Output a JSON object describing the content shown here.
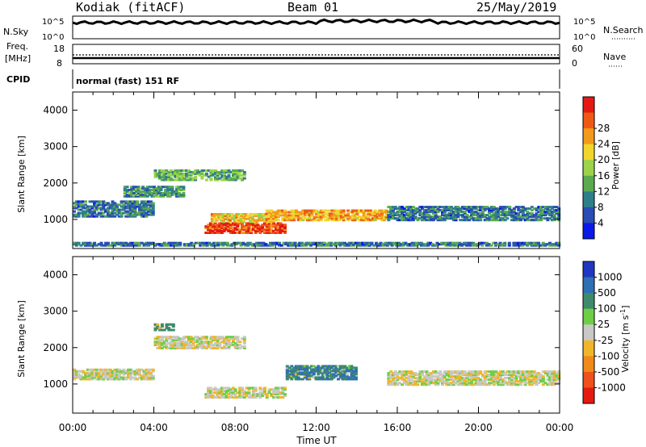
{
  "header": {
    "station": "Kodiak (fitACF)",
    "beam": "Beam 01",
    "date": "25/May/2019"
  },
  "nsky_panel": {
    "left_label": "N.Sky",
    "left_ticks": [
      "10^5",
      "10^0"
    ],
    "right_label": "N.Search",
    "right_ticks": [
      "10^5",
      "10^0"
    ]
  },
  "freq_panel": {
    "left_label_1": "Freq.",
    "left_label_2": "[MHz]",
    "left_ticks": [
      "18",
      "8"
    ],
    "right_label": "Nave",
    "right_ticks": [
      "60",
      "0"
    ]
  },
  "cpid": {
    "label": "CPID",
    "text": "normal (fast) 151 RF"
  },
  "colors": {
    "frame": "#000000",
    "sky_trace": "#000000"
  },
  "chart_data": [
    {
      "type": "heatmap",
      "title": "",
      "xlabel": "",
      "ylabel": "Slant Range [km]",
      "xlim": [
        "00:00",
        "24:00"
      ],
      "ylim": [
        200,
        4500
      ],
      "yticks": [
        1000,
        2000,
        3000,
        4000
      ],
      "colorbar": {
        "label": "Power [dB]",
        "ticks": [
          4,
          8,
          12,
          16,
          20,
          24,
          28
        ],
        "colors": [
          "#0a18e8",
          "#2a4cb4",
          "#2f7f8a",
          "#5aab4f",
          "#9bd34a",
          "#f0d62c",
          "#f29a1c",
          "#ee5a16",
          "#e41a12"
        ]
      },
      "features": [
        {
          "start_h": 0.0,
          "end_h": 4.0,
          "range_km": [
            1050,
            1500
          ],
          "level_db": 8
        },
        {
          "start_h": 2.5,
          "end_h": 5.5,
          "range_km": [
            1600,
            1900
          ],
          "level_db": 10
        },
        {
          "start_h": 4.0,
          "end_h": 8.5,
          "range_km": [
            2050,
            2350
          ],
          "level_db": 12
        },
        {
          "start_h": 6.5,
          "end_h": 10.5,
          "range_km": [
            600,
            900
          ],
          "level_db": 28
        },
        {
          "start_h": 6.8,
          "end_h": 10.0,
          "range_km": [
            900,
            1150
          ],
          "level_db": 20
        },
        {
          "start_h": 9.5,
          "end_h": 15.5,
          "range_km": [
            950,
            1250
          ],
          "level_db": 22
        },
        {
          "start_h": 15.5,
          "end_h": 24.0,
          "range_km": [
            950,
            1350
          ],
          "level_db": 8
        },
        {
          "start_h": 0.0,
          "end_h": 24.0,
          "range_km": [
            250,
            350
          ],
          "level_db": 8
        }
      ]
    },
    {
      "type": "heatmap",
      "title": "",
      "xlabel": "Time UT",
      "ylabel": "Slant Range [km]",
      "xlim": [
        "00:00",
        "24:00"
      ],
      "ylim": [
        200,
        4500
      ],
      "yticks": [
        1000,
        2000,
        3000,
        4000
      ],
      "xticks": [
        "00:00",
        "04:00",
        "08:00",
        "12:00",
        "16:00",
        "20:00",
        "00:00"
      ],
      "colorbar": {
        "label": "Velocity [m s^-1]",
        "ticks": [
          "1000",
          "500",
          "100",
          "25",
          "-25",
          "-100",
          "-500",
          "-1000"
        ],
        "colors": [
          "#2038c0",
          "#2f6fb4",
          "#3f8a6a",
          "#6fce46",
          "#c8c8c4",
          "#f0b62a",
          "#f08a1a",
          "#f0501a",
          "#e41a12"
        ]
      },
      "features": [
        {
          "start_h": 0.0,
          "end_h": 4.0,
          "range_km": [
            1100,
            1400
          ],
          "velocity": 0
        },
        {
          "start_h": 4.0,
          "end_h": 8.5,
          "range_km": [
            1950,
            2300
          ],
          "velocity": 0
        },
        {
          "start_h": 4.0,
          "end_h": 5.0,
          "range_km": [
            2450,
            2650
          ],
          "velocity": 200
        },
        {
          "start_h": 6.5,
          "end_h": 10.5,
          "range_km": [
            600,
            900
          ],
          "velocity": 0
        },
        {
          "start_h": 10.5,
          "end_h": 14.0,
          "range_km": [
            1100,
            1500
          ],
          "velocity": 300
        },
        {
          "start_h": 15.5,
          "end_h": 24.0,
          "range_km": [
            950,
            1350
          ],
          "velocity": 0
        }
      ]
    }
  ]
}
